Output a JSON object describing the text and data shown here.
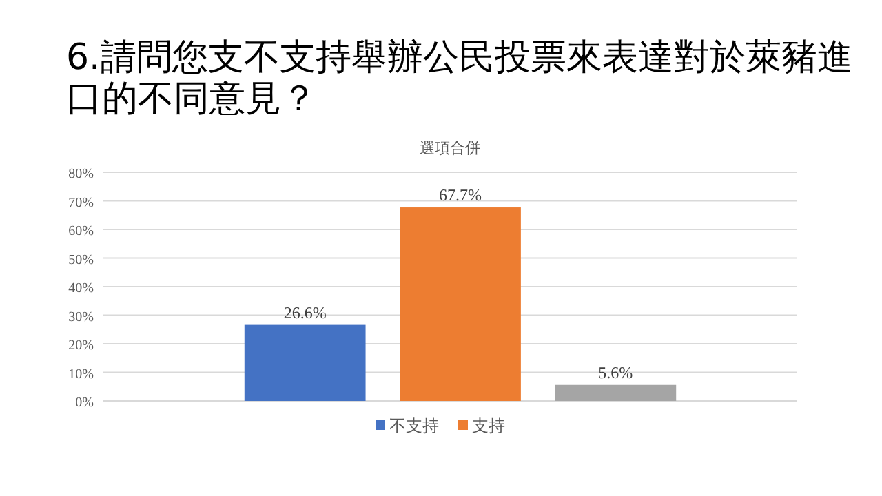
{
  "chart_data": {
    "type": "bar",
    "title": "6.請問您支不支持舉辦公民投票來表達對於萊豬進口的不同意見？",
    "subtitle": "選項合併",
    "categories": [
      null
    ],
    "series": [
      {
        "name": "不支持",
        "color": "#4472c4",
        "values": [
          26.6
        ],
        "value_labels": [
          "26.6%"
        ]
      },
      {
        "name": "支持",
        "color": "#ed7d31",
        "values": [
          67.7
        ],
        "value_labels": [
          "67.7%"
        ]
      },
      {
        "color": "#a5a5a5",
        "values": [
          5.6
        ],
        "value_labels": [
          "5.6%"
        ]
      }
    ],
    "ylim": [
      0,
      80
    ],
    "yticks": [
      {
        "value": 0,
        "label": "0%"
      },
      {
        "value": 10,
        "label": "10%"
      },
      {
        "value": 20,
        "label": "20%"
      },
      {
        "value": 30,
        "label": "30%"
      },
      {
        "value": 40,
        "label": "40%"
      },
      {
        "value": 50,
        "label": "50%"
      },
      {
        "value": 60,
        "label": "60%"
      },
      {
        "value": 70,
        "label": "70%"
      },
      {
        "value": 80,
        "label": "80%"
      }
    ],
    "grid": "y",
    "legend": "bottom"
  }
}
